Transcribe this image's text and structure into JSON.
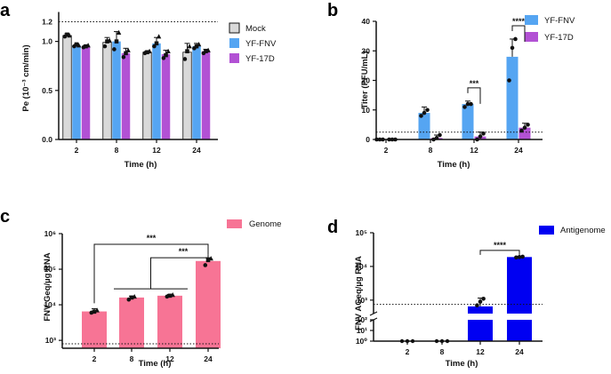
{
  "colors": {
    "mock": "#d9d9d9",
    "fnv": "#55a5f2",
    "17d": "#b251d4",
    "genome": "#f77495",
    "antigenome": "#0000f2",
    "axis": "#111111"
  },
  "chart_data": [
    {
      "panel": "a",
      "type": "bar",
      "categories": [
        "2",
        "8",
        "12",
        "24"
      ],
      "xlabel": "Time (h)",
      "ylabel": "Pe (10⁻³ cm/min)",
      "ylim": [
        0,
        1.3
      ],
      "yticks": [
        "0.0",
        "0.5",
        "1.0"
      ],
      "ytick_values": [
        0,
        0.5,
        1.0
      ],
      "reference_line": {
        "value": 1.2,
        "label": "1.2"
      },
      "series": [
        {
          "name": "Mock",
          "color_key": "mock",
          "values": [
            1.06,
            0.99,
            0.89,
            0.89
          ],
          "err": [
            0.02,
            0.05,
            0.01,
            0.09
          ],
          "points": [
            [
              1.05,
              1.07,
              1.06
            ],
            [
              0.95,
              1.0,
              1.01
            ],
            [
              0.88,
              0.89,
              0.9
            ],
            [
              0.82,
              0.9,
              0.95
            ]
          ]
        },
        {
          "name": "YF-FNV",
          "color_key": "fnv",
          "values": [
            0.96,
            1.0,
            0.98,
            0.95
          ],
          "err": [
            0.01,
            0.1,
            0.06,
            0.03
          ],
          "points": [
            [
              0.95,
              0.97,
              0.96
            ],
            [
              0.92,
              1.0,
              1.09
            ],
            [
              0.95,
              0.98,
              1.05
            ],
            [
              0.93,
              0.95,
              0.97
            ]
          ]
        },
        {
          "name": "YF-17D",
          "color_key": "17d",
          "values": [
            0.95,
            0.88,
            0.87,
            0.9
          ],
          "err": [
            0.01,
            0.05,
            0.04,
            0.02
          ],
          "points": [
            [
              0.94,
              0.95,
              0.96
            ],
            [
              0.84,
              0.88,
              0.91
            ],
            [
              0.83,
              0.86,
              0.9
            ],
            [
              0.88,
              0.9,
              0.91
            ]
          ]
        }
      ],
      "legend": [
        "Mock",
        "YF-FNV",
        "YF-17D"
      ]
    },
    {
      "panel": "b",
      "type": "bar",
      "categories": [
        "2",
        "8",
        "12",
        "24"
      ],
      "xlabel": "Time (h)",
      "ylabel": "Titer (PFU/mL)",
      "ylim": [
        0,
        40
      ],
      "yticks": [
        "0",
        "10",
        "20",
        "30",
        "40"
      ],
      "ytick_values": [
        0,
        10,
        20,
        30,
        40
      ],
      "reference_line": {
        "value": 2.5
      },
      "series": [
        {
          "name": "YF-FNV",
          "color_key": "fnv",
          "values": [
            0,
            9,
            12,
            28
          ],
          "err": [
            0,
            2,
            1,
            6
          ],
          "points": [
            [
              0,
              0,
              0
            ],
            [
              8,
              9,
              10
            ],
            [
              11,
              12,
              12
            ],
            [
              20,
              31,
              34
            ]
          ]
        },
        {
          "name": "YF-17D",
          "color_key": "17d",
          "values": [
            0,
            0.5,
            1,
            4
          ],
          "err": [
            0,
            1,
            1.5,
            1.5
          ],
          "points": [
            [
              0,
              0,
              0
            ],
            [
              0,
              0.5,
              1.5
            ],
            [
              0,
              1,
              2
            ],
            [
              3,
              4,
              5
            ]
          ]
        }
      ],
      "legend": [
        "YF-FNV",
        "YF-17D"
      ],
      "annotations": [
        {
          "between": "12",
          "text": "***"
        },
        {
          "between": "24",
          "text": "****"
        }
      ]
    },
    {
      "panel": "c",
      "type": "bar",
      "yscale": "log",
      "categories": [
        "2",
        "8",
        "12",
        "24"
      ],
      "xlabel": "Time (h)",
      "ylabel": "FNV Geq/µg RNA",
      "ylim": [
        600,
        1000000
      ],
      "yticks": [
        "10³",
        "10⁴",
        "10⁵",
        "10⁶"
      ],
      "ytick_values": [
        1000,
        10000,
        100000,
        1000000
      ],
      "reference_line": {
        "value": 800
      },
      "series": [
        {
          "name": "Genome",
          "color_key": "genome",
          "values": [
            6500,
            16000,
            18000,
            170000
          ],
          "err_hi": [
            7800,
            17500,
            19500,
            210000
          ],
          "points": [
            [
              6000,
              6400,
              7000
            ],
            [
              14000,
              16000,
              17000
            ],
            [
              17000,
              18000,
              19000
            ],
            [
              130000,
              180000,
              200000
            ]
          ]
        }
      ],
      "legend": [
        "Genome"
      ],
      "annotations": [
        {
          "from": "2",
          "to": "24",
          "text": "***"
        },
        {
          "from": "8–12",
          "to": "24",
          "text": "***"
        }
      ]
    },
    {
      "panel": "d",
      "type": "bar",
      "yscale": "log-broken",
      "categories": [
        "2",
        "8",
        "12",
        "24"
      ],
      "xlabel": "Time (h)",
      "ylabel": "FNV AGeq/µg RNA",
      "yticks_lower": [
        "10⁰",
        "10¹",
        "10²"
      ],
      "yticks_upper": [
        "10³",
        "10⁴",
        "10⁵"
      ],
      "reference_line": {
        "value": 750
      },
      "series": [
        {
          "name": "Antigenome",
          "color_key": "antigenome",
          "values": [
            0,
            0,
            650,
            19000
          ],
          "err_hi": [
            0,
            0,
            1150,
            20000
          ],
          "points": [
            [
              1,
              1,
              1
            ],
            [
              1,
              1,
              1
            ],
            [
              700,
              900,
              1100
            ],
            [
              18500,
              19000,
              19500
            ]
          ]
        }
      ],
      "legend": [
        "Antigenome"
      ],
      "annotations": [
        {
          "from": "12",
          "to": "24",
          "text": "****"
        }
      ]
    }
  ]
}
